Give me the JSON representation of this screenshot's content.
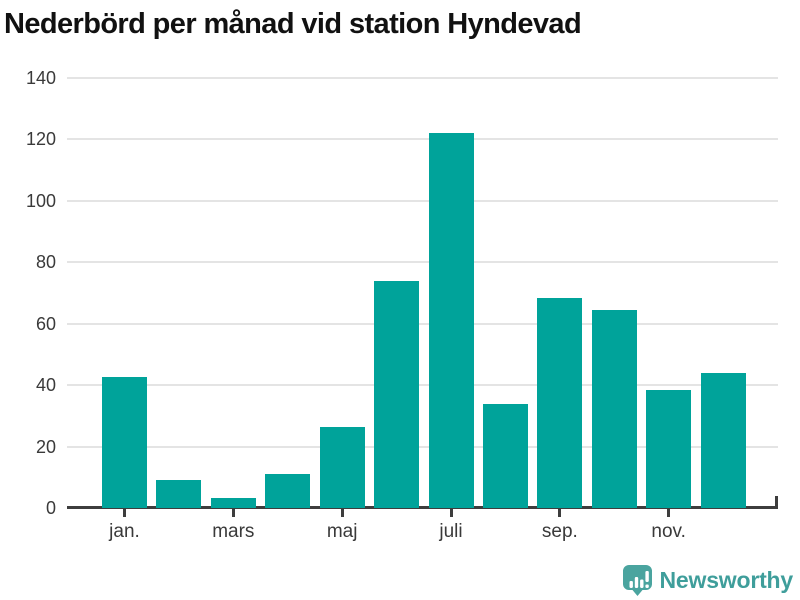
{
  "chart_data": {
    "type": "bar",
    "title": "Nederbörd per månad vid station Hyndevad",
    "yticks": [
      0,
      20,
      40,
      60,
      80,
      100,
      120,
      140
    ],
    "ylim": [
      0,
      140
    ],
    "grid": "horizontal",
    "legend_position": "none",
    "bar_color": "#00a39a",
    "values": [
      42.5,
      9,
      3.3,
      11,
      26.5,
      74,
      122,
      34,
      68.5,
      64.5,
      38.5,
      44
    ],
    "x_ticks": [
      {
        "index": 0,
        "label": "jan."
      },
      {
        "index": 2,
        "label": "mars"
      },
      {
        "index": 4,
        "label": "maj"
      },
      {
        "index": 6,
        "label": "juli"
      },
      {
        "index": 8,
        "label": "sep."
      },
      {
        "index": 10,
        "label": "nov."
      }
    ]
  },
  "footer": {
    "brand": "Newsworthy",
    "logo_icon": "bar-chart-exclamation-bubble-icon",
    "logo_color": "#4aa49f"
  }
}
